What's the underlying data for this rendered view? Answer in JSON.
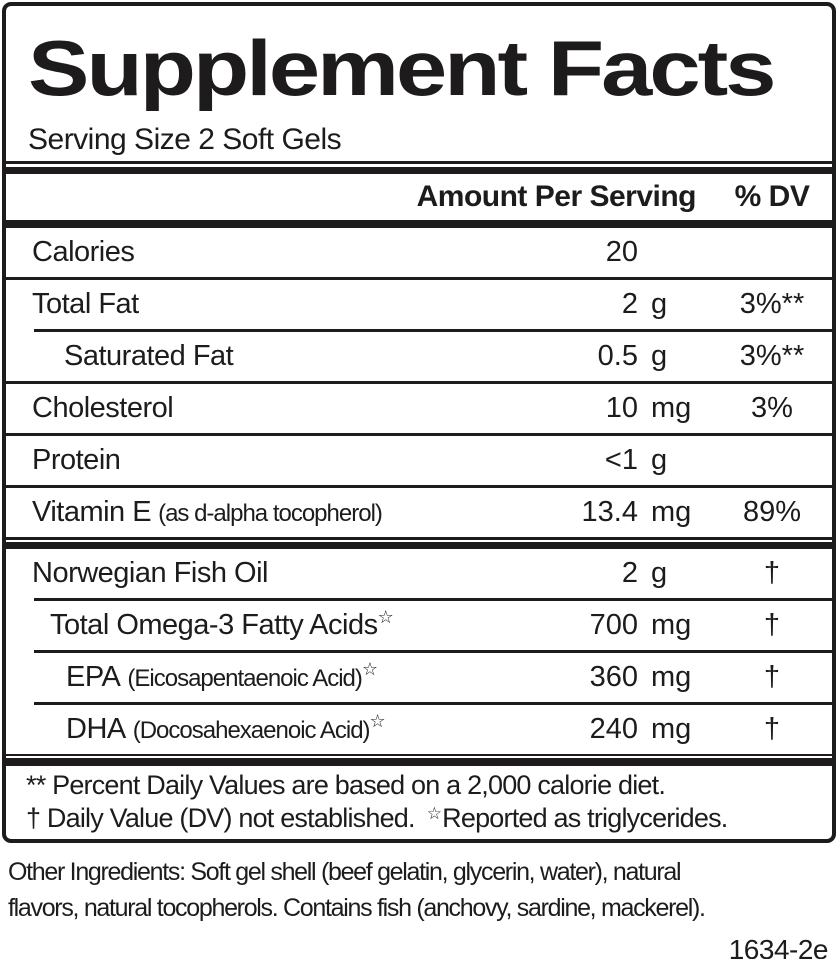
{
  "panel": {
    "title": "Supplement Facts",
    "serving_size": "Serving Size 2 Soft Gels",
    "header": {
      "amount_label": "Amount Per Serving",
      "dv_label": "% DV"
    },
    "rows": [
      {
        "name": "Calories",
        "paren": "",
        "star": "",
        "amount": "20",
        "unit": "",
        "dv": ""
      },
      {
        "name": "Total Fat",
        "paren": "",
        "star": "",
        "amount": "2",
        "unit": "g",
        "dv": "3%**"
      },
      {
        "name": "Saturated Fat",
        "paren": "",
        "star": "",
        "amount": "0.5",
        "unit": "g",
        "dv": "3%**"
      },
      {
        "name": "Cholesterol",
        "paren": "",
        "star": "",
        "amount": "10",
        "unit": "mg",
        "dv": "3%"
      },
      {
        "name": "Protein",
        "paren": "",
        "star": "",
        "amount": "<1",
        "unit": "g",
        "dv": ""
      },
      {
        "name": "Vitamin E",
        "paren": "(as d-alpha tocopherol)",
        "star": "",
        "amount": "13.4",
        "unit": "mg",
        "dv": "89%"
      },
      {
        "name": "Norwegian Fish Oil",
        "paren": "",
        "star": "",
        "amount": "2",
        "unit": "g",
        "dv": "†"
      },
      {
        "name": "Total Omega-3 Fatty Acids",
        "paren": "",
        "star": "☆",
        "amount": "700",
        "unit": "mg",
        "dv": "†"
      },
      {
        "name": "EPA",
        "paren": "(Eicosapentaenoic Acid)",
        "star": "☆",
        "amount": "360",
        "unit": "mg",
        "dv": "†"
      },
      {
        "name": "DHA",
        "paren": "(Docosahexaenoic Acid)",
        "star": "☆",
        "amount": "240",
        "unit": "mg",
        "dv": "†"
      }
    ],
    "footnotes": {
      "line1": "** Percent Daily Values are based on a 2,000 calorie diet.",
      "line2_text": "† Daily Value (DV) not established.",
      "line2_star": "☆",
      "line2_text2": "Reported as triglycerides."
    }
  },
  "below": {
    "other_ingredients_line1": "Other Ingredients: Soft gel shell (beef gelatin, glycerin, water), natural",
    "other_ingredients_line2": "flavors, natural tocopherols. Contains fish (anchovy, sardine, mackerel).",
    "code": "1634-2e"
  },
  "colors": {
    "ink": "#1d1b1b",
    "background": "#ffffff"
  }
}
